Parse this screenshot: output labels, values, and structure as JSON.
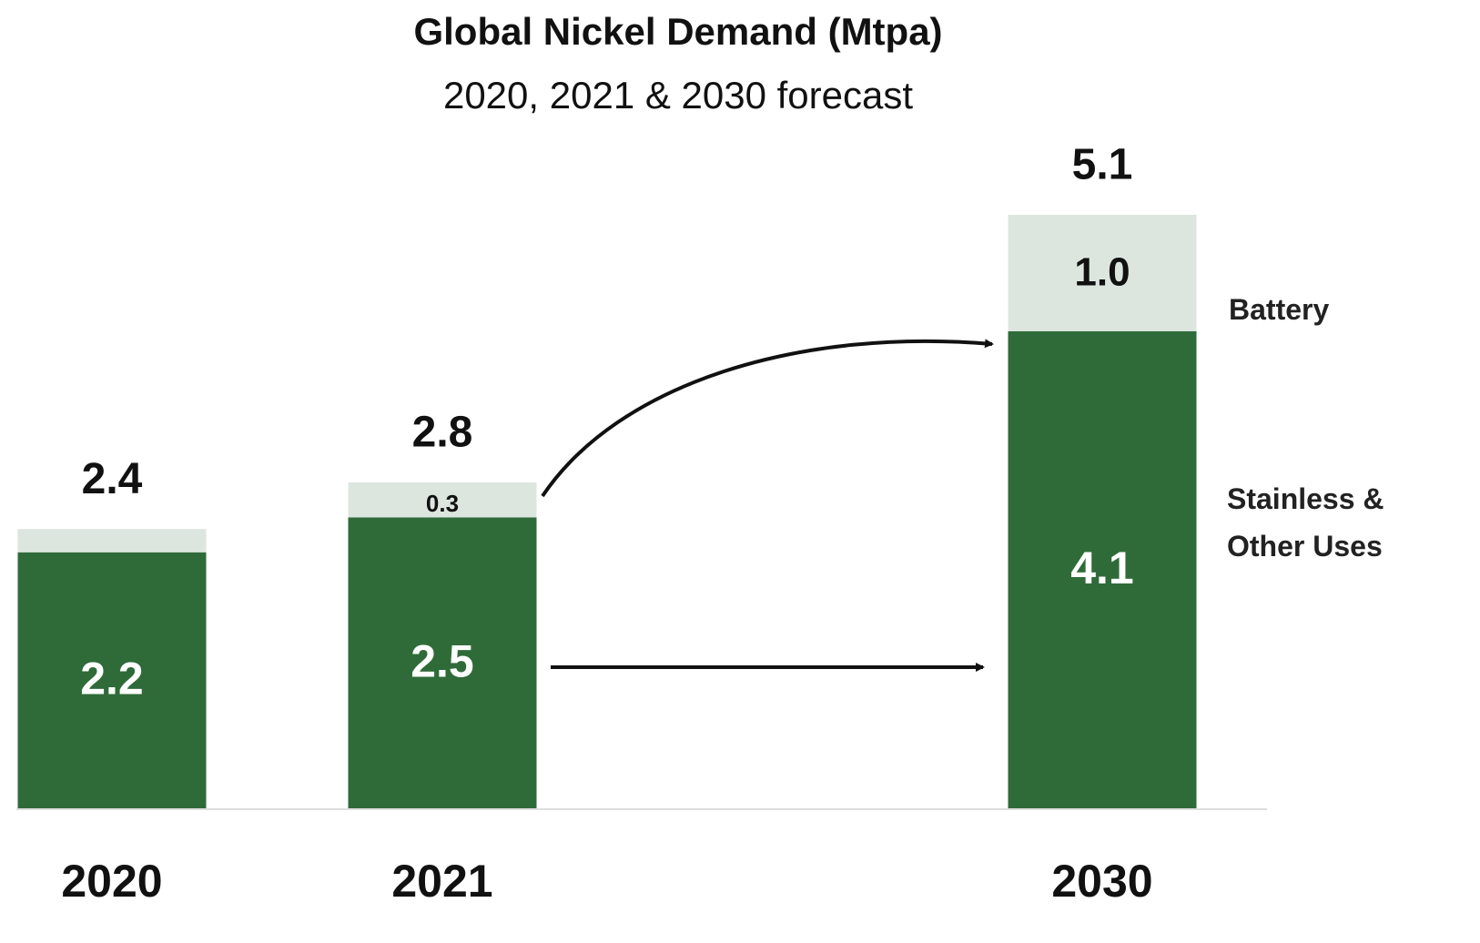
{
  "chart_data": {
    "type": "stacked_bar",
    "title": "Global Nickel Demand (Mtpa)",
    "subtitle": "2020, 2021 & 2030 forecast",
    "categories": [
      "2020",
      "2021",
      "2030"
    ],
    "series": [
      {
        "name": "Stainless & Other Uses",
        "color": "#2f6b38",
        "values": [
          2.2,
          2.5,
          4.1
        ]
      },
      {
        "name": "Battery",
        "color": "#dde6de",
        "values": [
          0.2,
          0.3,
          1.0
        ],
        "value_labels": [
          null,
          "0.3",
          "1.0"
        ]
      }
    ],
    "totals": [
      2.4,
      2.8,
      5.1
    ]
  }
}
